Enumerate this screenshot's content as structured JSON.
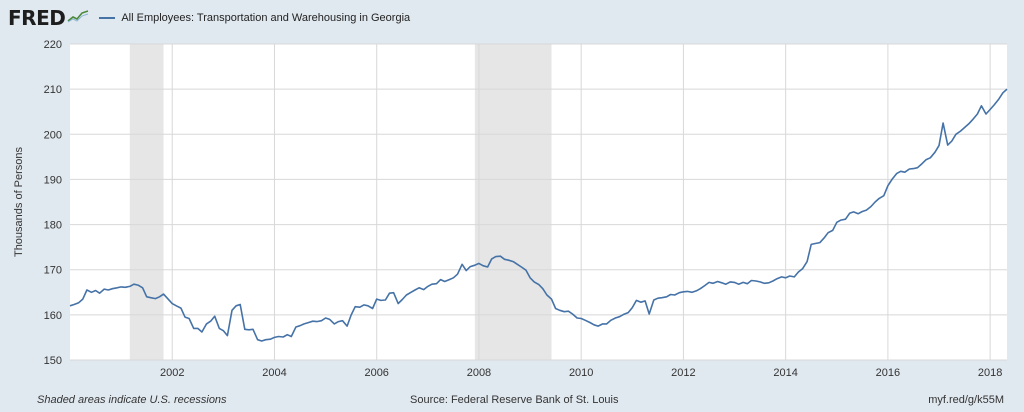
{
  "header": {
    "logo_text": "FRED",
    "logo_graph_icon": "line-chart-icon"
  },
  "chart_data": {
    "type": "line",
    "title": "All Employees: Transportation and Warehousing in Georgia",
    "xlabel": "",
    "ylabel": "Thousands of Persons",
    "xlim": [
      2000.0,
      2018.33
    ],
    "ylim": [
      150,
      220
    ],
    "y_ticks": [
      150,
      160,
      170,
      180,
      190,
      200,
      210,
      220
    ],
    "x_ticks": [
      2002,
      2004,
      2006,
      2008,
      2010,
      2012,
      2014,
      2016,
      2018
    ],
    "grid": true,
    "legend_position": "top-left",
    "colors": {
      "line": "#4572a7",
      "recession": "#e6e6e6",
      "plot_bg": "#ffffff",
      "grid": "#d8d8d8"
    },
    "recessions": [
      [
        2001.17,
        2001.83
      ],
      [
        2007.92,
        2009.42
      ]
    ],
    "series": [
      {
        "name": "All Employees: Transportation and Warehousing in Georgia",
        "points": [
          [
            2000.0,
            162
          ],
          [
            2000.08,
            162.3
          ],
          [
            2000.17,
            162.7
          ],
          [
            2000.25,
            163.5
          ],
          [
            2000.33,
            165.5
          ],
          [
            2000.42,
            165
          ],
          [
            2000.5,
            165.4
          ],
          [
            2000.58,
            164.8
          ],
          [
            2000.67,
            165.7
          ],
          [
            2000.75,
            165.5
          ],
          [
            2000.83,
            165.8
          ],
          [
            2000.92,
            166
          ],
          [
            2001.0,
            166.2
          ],
          [
            2001.08,
            166.1
          ],
          [
            2001.17,
            166.3
          ],
          [
            2001.25,
            166.8
          ],
          [
            2001.33,
            166.6
          ],
          [
            2001.42,
            166
          ],
          [
            2001.5,
            164
          ],
          [
            2001.58,
            163.8
          ],
          [
            2001.67,
            163.6
          ],
          [
            2001.75,
            164
          ],
          [
            2001.83,
            164.6
          ],
          [
            2001.92,
            163.5
          ],
          [
            2002.0,
            162.5
          ],
          [
            2002.08,
            162
          ],
          [
            2002.17,
            161.5
          ],
          [
            2002.25,
            159.5
          ],
          [
            2002.33,
            159.2
          ],
          [
            2002.42,
            157
          ],
          [
            2002.5,
            157
          ],
          [
            2002.58,
            156.2
          ],
          [
            2002.67,
            158
          ],
          [
            2002.75,
            158.6
          ],
          [
            2002.83,
            159.7
          ],
          [
            2002.92,
            157
          ],
          [
            2003.0,
            156.5
          ],
          [
            2003.08,
            155.4
          ],
          [
            2003.17,
            161
          ],
          [
            2003.25,
            162
          ],
          [
            2003.33,
            162.3
          ],
          [
            2003.42,
            156.8
          ],
          [
            2003.5,
            156.7
          ],
          [
            2003.58,
            156.8
          ],
          [
            2003.67,
            154.5
          ],
          [
            2003.75,
            154.2
          ],
          [
            2003.83,
            154.5
          ],
          [
            2003.92,
            154.6
          ],
          [
            2004.0,
            155
          ],
          [
            2004.08,
            155.2
          ],
          [
            2004.17,
            155.1
          ],
          [
            2004.25,
            155.6
          ],
          [
            2004.33,
            155.2
          ],
          [
            2004.42,
            157.3
          ],
          [
            2004.5,
            157.6
          ],
          [
            2004.58,
            158
          ],
          [
            2004.67,
            158.3
          ],
          [
            2004.75,
            158.6
          ],
          [
            2004.83,
            158.5
          ],
          [
            2004.92,
            158.7
          ],
          [
            2005.0,
            159.3
          ],
          [
            2005.08,
            159
          ],
          [
            2005.17,
            158
          ],
          [
            2005.25,
            158.5
          ],
          [
            2005.33,
            158.7
          ],
          [
            2005.42,
            157.5
          ],
          [
            2005.5,
            160
          ],
          [
            2005.58,
            161.8
          ],
          [
            2005.67,
            161.7
          ],
          [
            2005.75,
            162.2
          ],
          [
            2005.83,
            162
          ],
          [
            2005.92,
            161.4
          ],
          [
            2006.0,
            163.5
          ],
          [
            2006.08,
            163.2
          ],
          [
            2006.17,
            163.3
          ],
          [
            2006.25,
            164.8
          ],
          [
            2006.33,
            164.9
          ],
          [
            2006.42,
            162.5
          ],
          [
            2006.5,
            163.4
          ],
          [
            2006.58,
            164.4
          ],
          [
            2006.67,
            165
          ],
          [
            2006.75,
            165.5
          ],
          [
            2006.83,
            166
          ],
          [
            2006.92,
            165.6
          ],
          [
            2007.0,
            166.3
          ],
          [
            2007.08,
            166.8
          ],
          [
            2007.17,
            166.9
          ],
          [
            2007.25,
            167.8
          ],
          [
            2007.33,
            167.4
          ],
          [
            2007.42,
            167.8
          ],
          [
            2007.5,
            168.2
          ],
          [
            2007.58,
            169
          ],
          [
            2007.67,
            171.2
          ],
          [
            2007.75,
            169.8
          ],
          [
            2007.83,
            170.7
          ],
          [
            2007.92,
            171
          ],
          [
            2008.0,
            171.4
          ],
          [
            2008.08,
            170.9
          ],
          [
            2008.17,
            170.6
          ],
          [
            2008.25,
            172.4
          ],
          [
            2008.33,
            172.9
          ],
          [
            2008.42,
            173
          ],
          [
            2008.5,
            172.3
          ],
          [
            2008.58,
            172.1
          ],
          [
            2008.67,
            171.8
          ],
          [
            2008.75,
            171.2
          ],
          [
            2008.83,
            170.6
          ],
          [
            2008.92,
            169.9
          ],
          [
            2009.0,
            168.2
          ],
          [
            2009.08,
            167.3
          ],
          [
            2009.17,
            166.7
          ],
          [
            2009.25,
            165.8
          ],
          [
            2009.33,
            164.4
          ],
          [
            2009.42,
            163.5
          ],
          [
            2009.5,
            161.4
          ],
          [
            2009.58,
            161
          ],
          [
            2009.67,
            160.7
          ],
          [
            2009.75,
            160.8
          ],
          [
            2009.83,
            160.2
          ],
          [
            2009.92,
            159.3
          ],
          [
            2010.0,
            159.2
          ],
          [
            2010.08,
            158.8
          ],
          [
            2010.17,
            158.3
          ],
          [
            2010.25,
            157.8
          ],
          [
            2010.33,
            157.5
          ],
          [
            2010.42,
            158
          ],
          [
            2010.5,
            158
          ],
          [
            2010.58,
            158.8
          ],
          [
            2010.67,
            159.3
          ],
          [
            2010.75,
            159.6
          ],
          [
            2010.83,
            160.1
          ],
          [
            2010.92,
            160.5
          ],
          [
            2011.0,
            161.6
          ],
          [
            2011.08,
            163.2
          ],
          [
            2011.17,
            162.8
          ],
          [
            2011.25,
            163.1
          ],
          [
            2011.33,
            160.2
          ],
          [
            2011.42,
            163.3
          ],
          [
            2011.5,
            163.7
          ],
          [
            2011.58,
            163.8
          ],
          [
            2011.67,
            164
          ],
          [
            2011.75,
            164.5
          ],
          [
            2011.83,
            164.4
          ],
          [
            2011.92,
            164.9
          ],
          [
            2012.0,
            165.1
          ],
          [
            2012.08,
            165.2
          ],
          [
            2012.17,
            165
          ],
          [
            2012.25,
            165.3
          ],
          [
            2012.33,
            165.8
          ],
          [
            2012.42,
            166.5
          ],
          [
            2012.5,
            167.2
          ],
          [
            2012.58,
            167
          ],
          [
            2012.67,
            167.4
          ],
          [
            2012.75,
            167.1
          ],
          [
            2012.83,
            166.8
          ],
          [
            2012.92,
            167.3
          ],
          [
            2013.0,
            167.2
          ],
          [
            2013.08,
            166.8
          ],
          [
            2013.17,
            167.2
          ],
          [
            2013.25,
            166.9
          ],
          [
            2013.33,
            167.6
          ],
          [
            2013.42,
            167.5
          ],
          [
            2013.5,
            167.3
          ],
          [
            2013.58,
            167
          ],
          [
            2013.67,
            167.1
          ],
          [
            2013.75,
            167.5
          ],
          [
            2013.83,
            168
          ],
          [
            2013.92,
            168.4
          ],
          [
            2014.0,
            168.2
          ],
          [
            2014.08,
            168.6
          ],
          [
            2014.17,
            168.4
          ],
          [
            2014.25,
            169.5
          ],
          [
            2014.33,
            170.2
          ],
          [
            2014.42,
            171.8
          ],
          [
            2014.5,
            175.6
          ],
          [
            2014.58,
            175.8
          ],
          [
            2014.67,
            176
          ],
          [
            2014.75,
            177
          ],
          [
            2014.83,
            178.2
          ],
          [
            2014.92,
            178.7
          ],
          [
            2015.0,
            180.5
          ],
          [
            2015.08,
            181
          ],
          [
            2015.17,
            181.2
          ],
          [
            2015.25,
            182.5
          ],
          [
            2015.33,
            182.8
          ],
          [
            2015.42,
            182.4
          ],
          [
            2015.5,
            182.9
          ],
          [
            2015.58,
            183.2
          ],
          [
            2015.67,
            184
          ],
          [
            2015.75,
            185
          ],
          [
            2015.83,
            185.8
          ],
          [
            2015.92,
            186.4
          ],
          [
            2016.0,
            188.6
          ],
          [
            2016.08,
            190
          ],
          [
            2016.17,
            191.3
          ],
          [
            2016.25,
            191.8
          ],
          [
            2016.33,
            191.6
          ],
          [
            2016.42,
            192.3
          ],
          [
            2016.5,
            192.4
          ],
          [
            2016.58,
            192.6
          ],
          [
            2016.67,
            193.5
          ],
          [
            2016.75,
            194.4
          ],
          [
            2016.83,
            194.8
          ],
          [
            2016.92,
            196
          ],
          [
            2017.0,
            197.5
          ],
          [
            2017.08,
            202.5
          ],
          [
            2017.17,
            197.6
          ],
          [
            2017.25,
            198.5
          ],
          [
            2017.33,
            200
          ],
          [
            2017.42,
            200.7
          ],
          [
            2017.5,
            201.5
          ],
          [
            2017.58,
            202.3
          ],
          [
            2017.67,
            203.4
          ],
          [
            2017.75,
            204.5
          ],
          [
            2017.83,
            206.3
          ],
          [
            2017.92,
            204.5
          ],
          [
            2018.0,
            205.5
          ],
          [
            2018.08,
            206.5
          ],
          [
            2018.17,
            207.8
          ],
          [
            2018.25,
            209.2
          ],
          [
            2018.33,
            210
          ]
        ]
      }
    ]
  },
  "footer": {
    "note": "Shaded areas indicate U.S. recessions",
    "source": "Source: Federal Reserve Bank of St. Louis",
    "url": "myf.red/g/k55M"
  }
}
